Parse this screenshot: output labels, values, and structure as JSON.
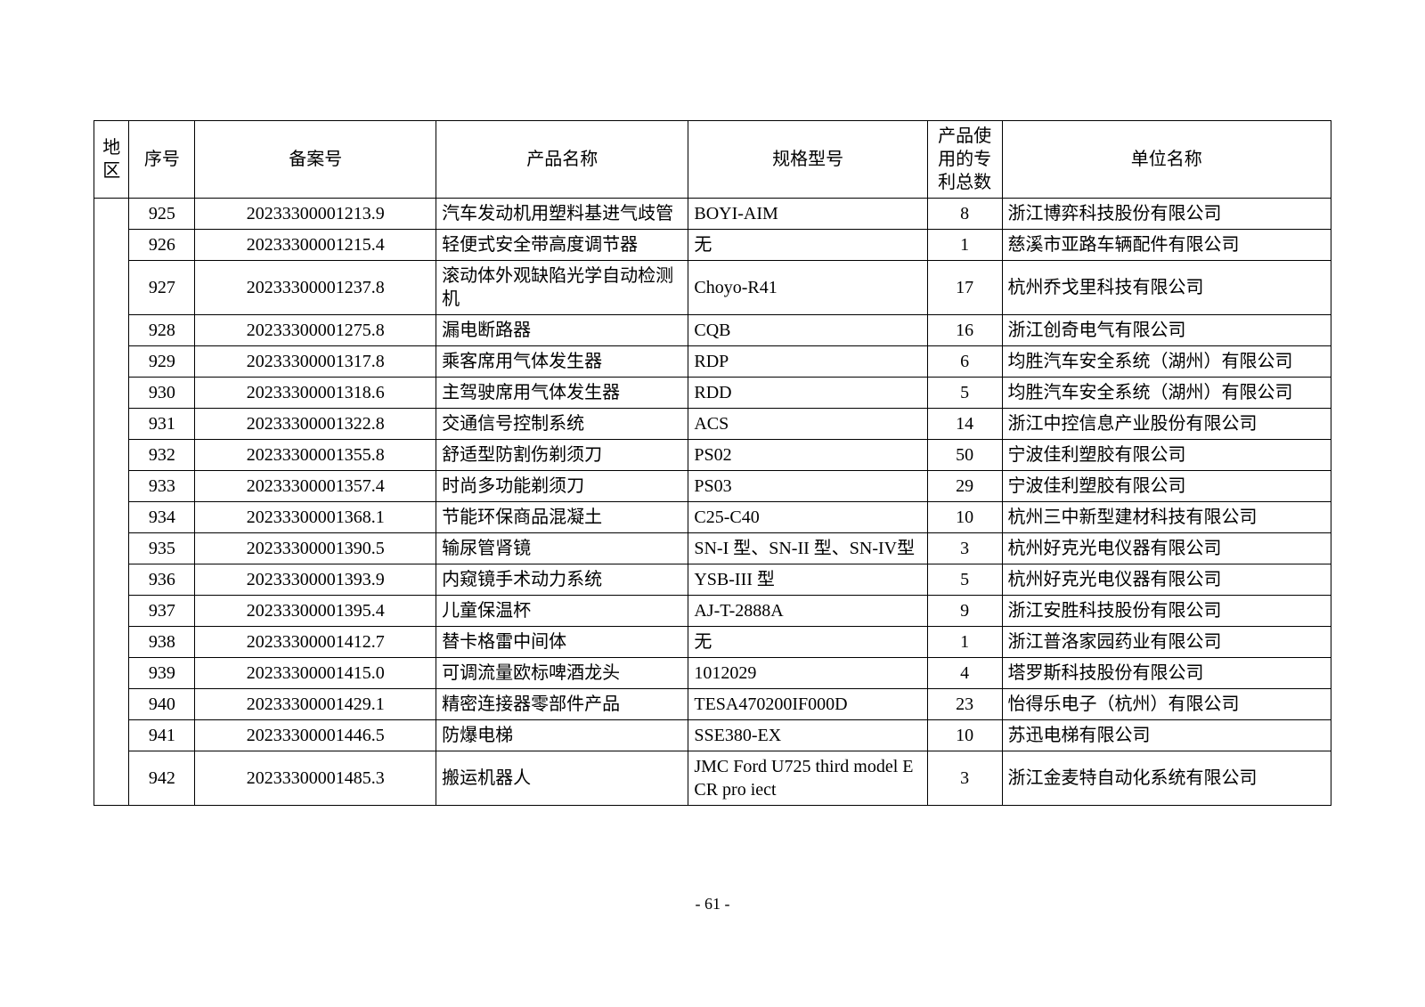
{
  "table": {
    "headers": {
      "region": "地区",
      "seq": "序号",
      "record": "备案号",
      "product": "产品名称",
      "spec": "规格型号",
      "patent": "产品使用的专利总数",
      "company": "单位名称"
    },
    "rows": [
      {
        "seq": "925",
        "record": "20233300001213.9",
        "product": "汽车发动机用塑料基进气歧管",
        "spec": "BOYI-AIM",
        "patent": "8",
        "company": "浙江博弈科技股份有限公司"
      },
      {
        "seq": "926",
        "record": "20233300001215.4",
        "product": "轻便式安全带高度调节器",
        "spec": "无",
        "patent": "1",
        "company": "慈溪市亚路车辆配件有限公司"
      },
      {
        "seq": "927",
        "record": "20233300001237.8",
        "product": "滚动体外观缺陷光学自动检测机",
        "spec": "Choyo-R41",
        "patent": "17",
        "company": "杭州乔戈里科技有限公司"
      },
      {
        "seq": "928",
        "record": "20233300001275.8",
        "product": "漏电断路器",
        "spec": "CQB",
        "patent": "16",
        "company": "浙江创奇电气有限公司"
      },
      {
        "seq": "929",
        "record": "20233300001317.8",
        "product": "乘客席用气体发生器",
        "spec": "RDP",
        "patent": "6",
        "company": "均胜汽车安全系统（湖州）有限公司"
      },
      {
        "seq": "930",
        "record": "20233300001318.6",
        "product": "主驾驶席用气体发生器",
        "spec": "RDD",
        "patent": "5",
        "company": "均胜汽车安全系统（湖州）有限公司"
      },
      {
        "seq": "931",
        "record": "20233300001322.8",
        "product": "交通信号控制系统",
        "spec": "ACS",
        "patent": "14",
        "company": "浙江中控信息产业股份有限公司"
      },
      {
        "seq": "932",
        "record": "20233300001355.8",
        "product": "舒适型防割伤剃须刀",
        "spec": "PS02",
        "patent": "50",
        "company": "宁波佳利塑胶有限公司"
      },
      {
        "seq": "933",
        "record": "20233300001357.4",
        "product": "时尚多功能剃须刀",
        "spec": "PS03",
        "patent": "29",
        "company": "宁波佳利塑胶有限公司"
      },
      {
        "seq": "934",
        "record": "20233300001368.1",
        "product": "节能环保商品混凝土",
        "spec": "C25-C40",
        "patent": "10",
        "company": "杭州三中新型建材科技有限公司"
      },
      {
        "seq": "935",
        "record": "20233300001390.5",
        "product": "输尿管肾镜",
        "spec": "SN-I 型、SN-II 型、SN-IV型",
        "patent": "3",
        "company": "杭州好克光电仪器有限公司"
      },
      {
        "seq": "936",
        "record": "20233300001393.9",
        "product": "内窥镜手术动力系统",
        "spec": "YSB-III 型",
        "patent": "5",
        "company": "杭州好克光电仪器有限公司"
      },
      {
        "seq": "937",
        "record": "20233300001395.4",
        "product": "儿童保温杯",
        "spec": "AJ-T-2888A",
        "patent": "9",
        "company": "浙江安胜科技股份有限公司"
      },
      {
        "seq": "938",
        "record": "20233300001412.7",
        "product": "替卡格雷中间体",
        "spec": "无",
        "patent": "1",
        "company": "浙江普洛家园药业有限公司"
      },
      {
        "seq": "939",
        "record": "20233300001415.0",
        "product": "可调流量欧标啤酒龙头",
        "spec": "1012029",
        "patent": "4",
        "company": "塔罗斯科技股份有限公司"
      },
      {
        "seq": "940",
        "record": "20233300001429.1",
        "product": "精密连接器零部件产品",
        "spec": "TESA470200IF000D",
        "patent": "23",
        "company": "怡得乐电子（杭州）有限公司"
      },
      {
        "seq": "941",
        "record": "20233300001446.5",
        "product": "防爆电梯",
        "spec": "SSE380-EX",
        "patent": "10",
        "company": "苏迅电梯有限公司"
      },
      {
        "seq": "942",
        "record": "20233300001485.3",
        "product": "搬运机器人",
        "spec": "JMC Ford U725 third model ECR pro iect",
        "patent": "3",
        "company": "浙江金麦特自动化系统有限公司"
      }
    ]
  },
  "page_number": "- 61 -"
}
